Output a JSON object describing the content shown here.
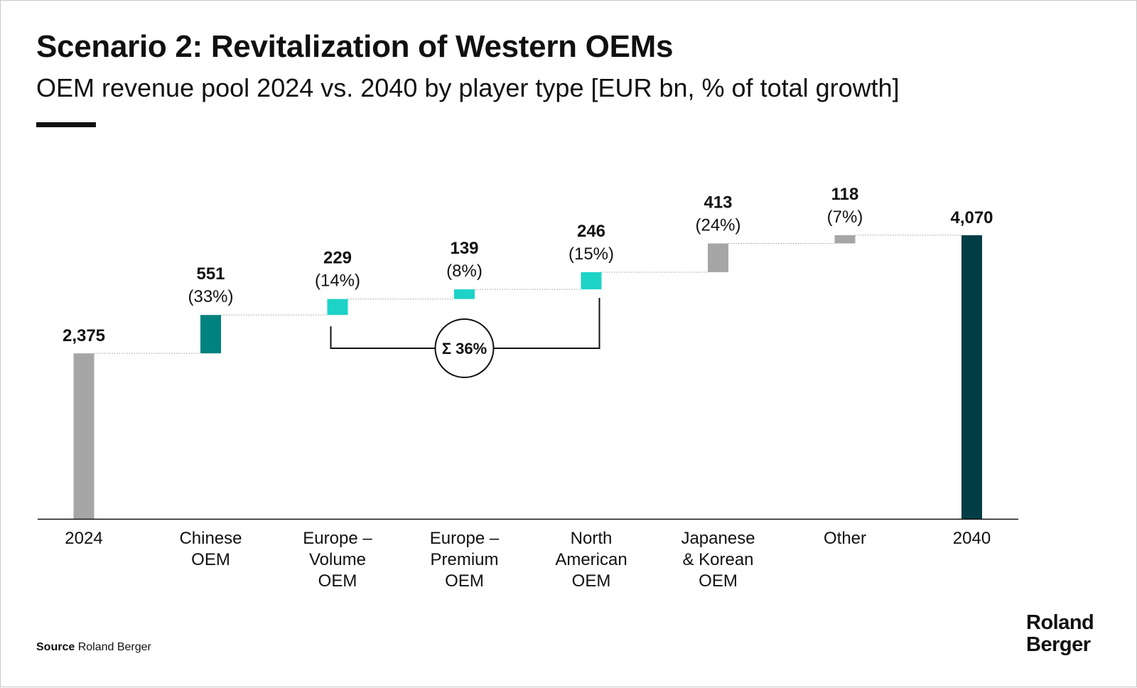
{
  "header": {
    "title": "Scenario 2: Revitalization of Western OEMs",
    "subtitle": "OEM revenue pool 2024 vs. 2040 by player type [EUR bn, % of total growth]"
  },
  "chart_data": {
    "type": "bar",
    "subtype": "waterfall",
    "categories": [
      [
        "2024"
      ],
      [
        "Chinese",
        "OEM"
      ],
      [
        "Europe –",
        "Volume",
        "OEM"
      ],
      [
        "Europe –",
        "Premium",
        "OEM"
      ],
      [
        "North",
        "American",
        "OEM"
      ],
      [
        "Japanese",
        "& Korean",
        "OEM"
      ],
      [
        "Other"
      ],
      [
        "2040"
      ]
    ],
    "bars": [
      {
        "kind": "total",
        "value": 2375,
        "value_label": "2,375",
        "share_label": "",
        "color": "#a6a6a6"
      },
      {
        "kind": "delta",
        "value": 551,
        "value_label": "551",
        "share_label": "(33%)",
        "color": "#00827f"
      },
      {
        "kind": "delta",
        "value": 229,
        "value_label": "229",
        "share_label": "(14%)",
        "color": "#1dd3c6"
      },
      {
        "kind": "delta",
        "value": 139,
        "value_label": "139",
        "share_label": "(8%)",
        "color": "#1dd3c6"
      },
      {
        "kind": "delta",
        "value": 246,
        "value_label": "246",
        "share_label": "(15%)",
        "color": "#1dd3c6"
      },
      {
        "kind": "delta",
        "value": 413,
        "value_label": "413",
        "share_label": "(24%)",
        "color": "#a6a6a6"
      },
      {
        "kind": "delta",
        "value": 118,
        "value_label": "118",
        "share_label": "(7%)",
        "color": "#a6a6a6"
      },
      {
        "kind": "total",
        "value": 4070,
        "value_label": "4,070",
        "share_label": "",
        "color": "#003d44"
      }
    ],
    "bracket": {
      "from": 2,
      "to": 4,
      "label": "Σ 36%"
    },
    "ylim": [
      0,
      4070
    ],
    "grid": false,
    "legend": "none"
  },
  "footer": {
    "source_label": "Source",
    "source_text": "Roland Berger",
    "logo_line1": "Roland",
    "logo_line2": "Berger"
  }
}
